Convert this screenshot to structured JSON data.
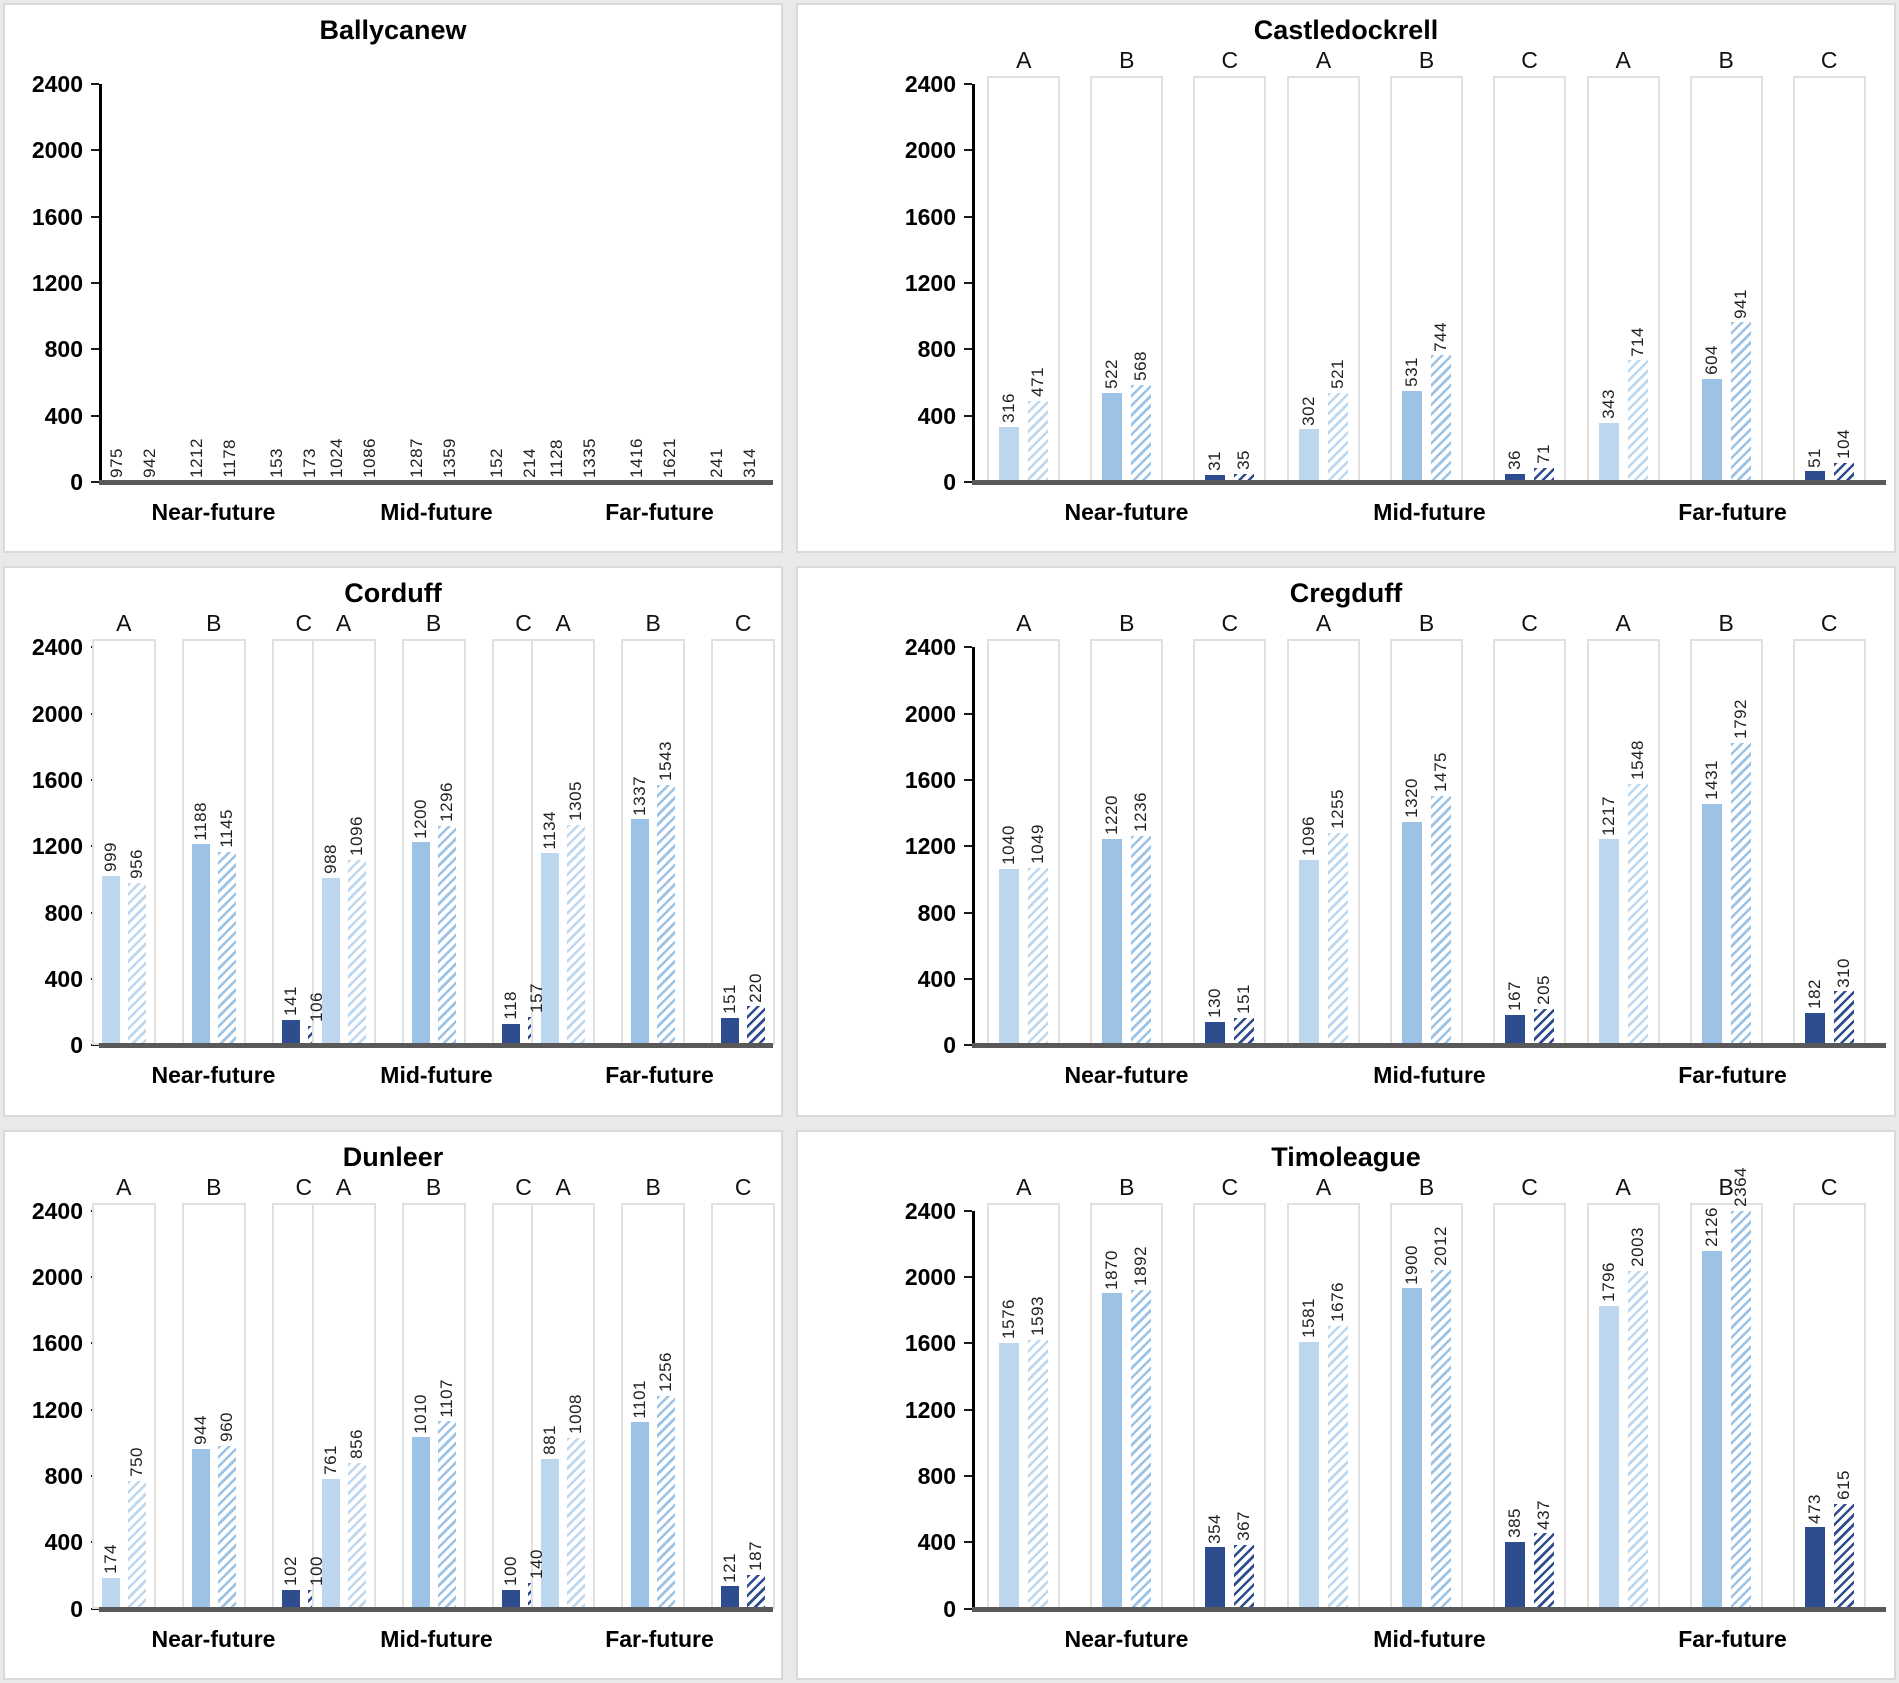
{
  "page": {
    "background": "#e9e9e9",
    "panel_border": "#d9d9d9",
    "axis_color": "#000000",
    "baseline_color": "#595959",
    "box_border": "#e0e0e0",
    "label_color": "#1f1f1f"
  },
  "colors": {
    "pair_solid": [
      "#BDD7EE",
      "#9CC3E5",
      "#2E4D8F"
    ],
    "hatch_background": "#ffffff"
  },
  "pair_labels": [
    "A",
    "B",
    "C"
  ],
  "chart_data": [
    {
      "type": "bar",
      "title": "Ballycanew",
      "pair_boxes": false,
      "side": "left",
      "categories": [
        "Near-future",
        "Mid-future",
        "Far-future"
      ],
      "ylim": [
        0,
        2400
      ],
      "yticks": [
        0,
        400,
        800,
        1200,
        1600,
        2000,
        2400
      ],
      "grid": false,
      "legend": "none",
      "series": [
        {
          "name": "A-solid",
          "values": [
            975,
            1024,
            1128
          ]
        },
        {
          "name": "A-hatched",
          "values": [
            942,
            1086,
            1335
          ]
        },
        {
          "name": "B-solid",
          "values": [
            1212,
            1287,
            1416
          ]
        },
        {
          "name": "B-hatched",
          "values": [
            1178,
            1359,
            1621
          ]
        },
        {
          "name": "C-solid",
          "values": [
            153,
            152,
            241
          ]
        },
        {
          "name": "C-hatched",
          "values": [
            173,
            214,
            314
          ]
        }
      ]
    },
    {
      "type": "bar",
      "title": "Castledockrell",
      "pair_boxes": true,
      "side": "right",
      "categories": [
        "Near-future",
        "Mid-future",
        "Far-future"
      ],
      "ylim": [
        0,
        2400
      ],
      "yticks": [
        0,
        400,
        800,
        1200,
        1600,
        2000,
        2400
      ],
      "grid": false,
      "legend": "none",
      "series": [
        {
          "name": "A-solid",
          "values": [
            316,
            302,
            343
          ]
        },
        {
          "name": "A-hatched",
          "values": [
            471,
            521,
            714
          ]
        },
        {
          "name": "B-solid",
          "values": [
            522,
            531,
            604
          ]
        },
        {
          "name": "B-hatched",
          "values": [
            568,
            744,
            941
          ]
        },
        {
          "name": "C-solid",
          "values": [
            31,
            36,
            51
          ]
        },
        {
          "name": "C-hatched",
          "values": [
            35,
            71,
            104
          ]
        }
      ]
    },
    {
      "type": "bar",
      "title": "Corduff",
      "pair_boxes": true,
      "side": "left",
      "categories": [
        "Near-future",
        "Mid-future",
        "Far-future"
      ],
      "ylim": [
        0,
        2400
      ],
      "yticks": [
        0,
        400,
        800,
        1200,
        1600,
        2000,
        2400
      ],
      "grid": false,
      "legend": "none",
      "series": [
        {
          "name": "A-solid",
          "values": [
            999,
            988,
            1134
          ]
        },
        {
          "name": "A-hatched",
          "values": [
            956,
            1096,
            1305
          ]
        },
        {
          "name": "B-solid",
          "values": [
            1188,
            1200,
            1337
          ]
        },
        {
          "name": "B-hatched",
          "values": [
            1145,
            1296,
            1543
          ]
        },
        {
          "name": "C-solid",
          "values": [
            141,
            118,
            151
          ]
        },
        {
          "name": "C-hatched",
          "values": [
            106,
            157,
            220
          ]
        }
      ]
    },
    {
      "type": "bar",
      "title": "Cregduff",
      "pair_boxes": true,
      "side": "right",
      "categories": [
        "Near-future",
        "Mid-future",
        "Far-future"
      ],
      "ylim": [
        0,
        2400
      ],
      "yticks": [
        0,
        400,
        800,
        1200,
        1600,
        2000,
        2400
      ],
      "grid": false,
      "legend": "none",
      "series": [
        {
          "name": "A-solid",
          "values": [
            1040,
            1096,
            1217
          ]
        },
        {
          "name": "A-hatched",
          "values": [
            1049,
            1255,
            1548
          ]
        },
        {
          "name": "B-solid",
          "values": [
            1220,
            1320,
            1431
          ]
        },
        {
          "name": "B-hatched",
          "values": [
            1236,
            1475,
            1792
          ]
        },
        {
          "name": "C-solid",
          "values": [
            130,
            167,
            182
          ]
        },
        {
          "name": "C-hatched",
          "values": [
            151,
            205,
            310
          ]
        }
      ]
    },
    {
      "type": "bar",
      "title": "Dunleer",
      "pair_boxes": true,
      "side": "left",
      "categories": [
        "Near-future",
        "Mid-future",
        "Far-future"
      ],
      "ylim": [
        0,
        2400
      ],
      "yticks": [
        0,
        400,
        800,
        1200,
        1600,
        2000,
        2400
      ],
      "grid": false,
      "legend": "none",
      "series": [
        {
          "name": "A-solid",
          "values": [
            174,
            761,
            881
          ]
        },
        {
          "name": "A-hatched",
          "values": [
            750,
            856,
            1008
          ]
        },
        {
          "name": "B-solid",
          "values": [
            944,
            1010,
            1101
          ]
        },
        {
          "name": "B-hatched",
          "values": [
            960,
            1107,
            1256
          ]
        },
        {
          "name": "C-solid",
          "values": [
            102,
            100,
            121
          ]
        },
        {
          "name": "C-hatched",
          "values": [
            100,
            140,
            187
          ]
        }
      ]
    },
    {
      "type": "bar",
      "title": "Timoleague",
      "pair_boxes": true,
      "side": "right",
      "categories": [
        "Near-future",
        "Mid-future",
        "Far-future"
      ],
      "ylim": [
        0,
        2400
      ],
      "yticks": [
        0,
        400,
        800,
        1200,
        1600,
        2000,
        2400
      ],
      "grid": false,
      "legend": "none",
      "series": [
        {
          "name": "A-solid",
          "values": [
            1576,
            1581,
            1796
          ]
        },
        {
          "name": "A-hatched",
          "values": [
            1593,
            1676,
            2003
          ]
        },
        {
          "name": "B-solid",
          "values": [
            1870,
            1900,
            2126
          ]
        },
        {
          "name": "B-hatched",
          "values": [
            1892,
            2012,
            2364
          ]
        },
        {
          "name": "C-solid",
          "values": [
            354,
            385,
            473
          ]
        },
        {
          "name": "C-hatched",
          "values": [
            367,
            437,
            615
          ]
        }
      ]
    }
  ]
}
